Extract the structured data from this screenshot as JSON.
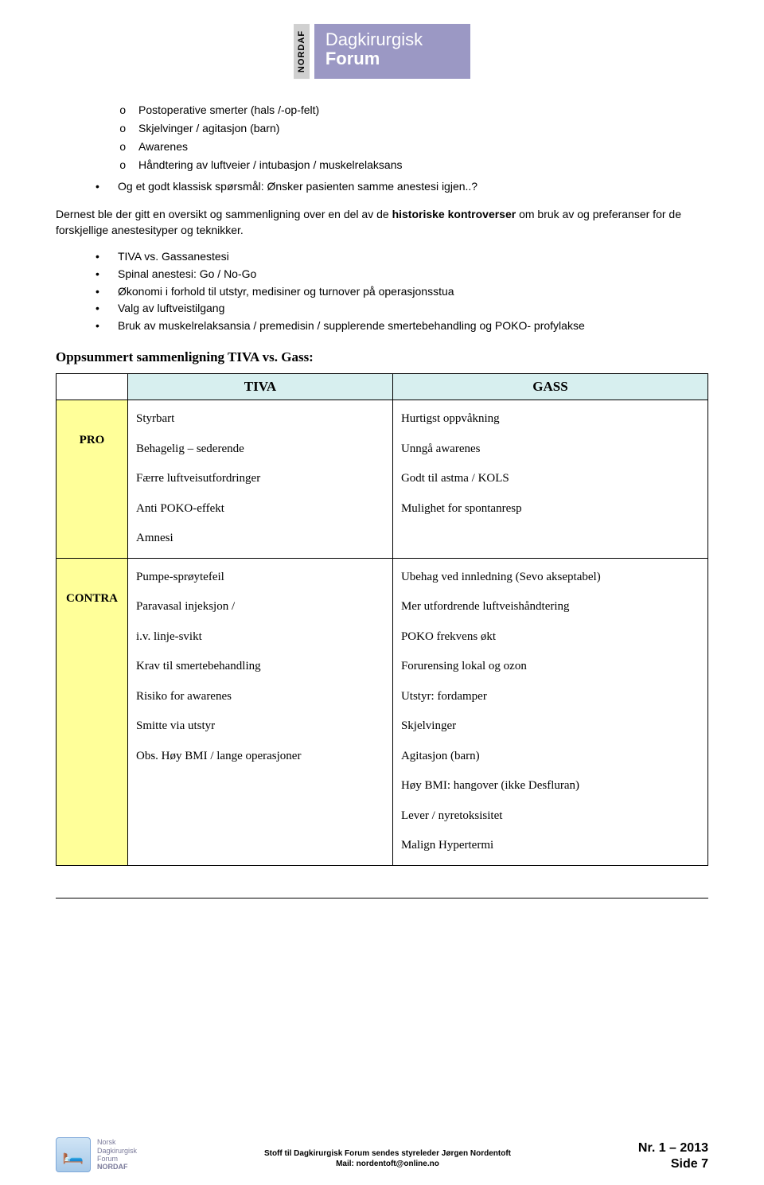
{
  "logo": {
    "side": "NORDAF",
    "line1": "Dagkirurgisk",
    "line2": "Forum"
  },
  "sublist": [
    "Postoperative smerter (hals /-op-felt)",
    "Skjelvinger / agitasjon (barn)",
    "Awarenes",
    "Håndtering av luftveier / intubasjon / muskelrelaksans"
  ],
  "bullet_after_sublist": "Og et godt klassisk spørsmål: Ønsker pasienten samme anestesi igjen..?",
  "paragraph": {
    "pre": "Dernest ble der gitt en oversikt og sammenligning over en del av de ",
    "bold": "historiske kontroverser",
    "post": " om bruk av og preferanser for de forskjellige anestesityper og teknikker."
  },
  "bullets2": [
    "TIVA vs. Gassanestesi",
    "Spinal anestesi: Go / No-Go",
    "Økonomi i forhold til utstyr, medisiner og turnover på operasjonsstua",
    "Valg av luftveistilgang",
    "Bruk av muskelrelaksansia / premedisin / supplerende smertebehandling og POKO- profylakse"
  ],
  "comparison_heading": "Oppsummert sammenligning TIVA vs. Gass:",
  "table": {
    "header_bg": "#d7efef",
    "rowlabel_bg": "#ffff99",
    "col1": "TIVA",
    "col2": "GASS",
    "row_pro_label": "PRO",
    "row_contra_label": "CONTRA",
    "pro_tiva": [
      "Styrbart",
      "Behagelig – sederende",
      "Færre luftveisutfordringer",
      "Anti POKO-effekt",
      "Amnesi"
    ],
    "pro_gass": [
      "Hurtigst oppvåkning",
      "Unngå awarenes",
      "Godt til astma / KOLS",
      "Mulighet for spontanresp"
    ],
    "contra_tiva": [
      "Pumpe-sprøytefeil",
      "Paravasal injeksjon /",
      "i.v. linje-svikt",
      "Krav til smertebehandling",
      "Risiko for awarenes",
      "Smitte via utstyr",
      "Obs. Høy BMI / lange operasjoner"
    ],
    "contra_gass": [
      "Ubehag ved innledning (Sevo akseptabel)",
      "Mer utfordrende luftveishåndtering",
      "POKO frekvens økt",
      "Forurensing lokal og ozon",
      "Utstyr: fordamper",
      "Skjelvinger",
      "Agitasjon (barn)",
      "Høy BMI: hangover (ikke Desfluran)",
      "Lever / nyretoksisitet",
      "Malign Hypertermi"
    ]
  },
  "footer": {
    "small1": "Norsk",
    "small2": "Dagkirurgisk",
    "small3": "Forum",
    "small4": "NORDAF",
    "center1": "Stoff til Dagkirurgisk Forum sendes styreleder Jørgen Nordentoft",
    "center2": "Mail: nordentoft@online.no",
    "issue": "Nr. 1 – 2013",
    "page": "Side 7"
  }
}
